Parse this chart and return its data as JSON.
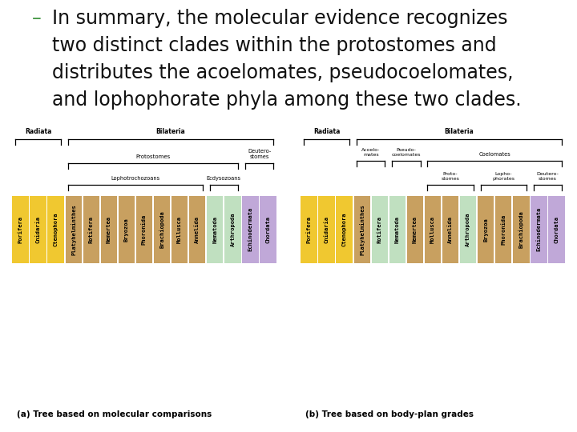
{
  "title_lines": [
    {
      "dash": true,
      "text": "In summary, the molecular evidence recognizes"
    },
    {
      "dash": false,
      "text": "two distinct clades within the protostomes and"
    },
    {
      "dash": false,
      "text": "distributes the acoelomates, pseudocoelomates,"
    },
    {
      "dash": false,
      "text": "and lophophorate phyla among these two clades."
    }
  ],
  "title_color": "#111111",
  "dash_color": "#4a9a4a",
  "bg_color": "#ffffff",
  "tree_bg": "#6ec5b5",
  "caption_a": "(a) Tree based on molecular comparisons",
  "caption_b": "(b) Tree based on body-plan grades",
  "tree_a": {
    "taxa": [
      "Porifera",
      "Cnidaria",
      "Ctenophora",
      "Platyhelminthes",
      "Rotifera",
      "Nemertea",
      "Bryozoa",
      "Phoronida",
      "Brachiopoda",
      "Mollusca",
      "Annelida",
      "Nematoda",
      "Arthropoda",
      "Echinodermata",
      "Chordata"
    ],
    "colors": [
      "#f0c830",
      "#f0c830",
      "#f0c830",
      "#c8a060",
      "#c8a060",
      "#c8a060",
      "#c8a060",
      "#c8a060",
      "#c8a060",
      "#c8a060",
      "#c8a060",
      "#c0e0c0",
      "#c0e0c0",
      "#c0a8d8",
      "#c0a8d8"
    ]
  },
  "tree_b": {
    "taxa": [
      "Porifera",
      "Cnidaria",
      "Ctenophora",
      "Platyhelminthes",
      "Rotifera",
      "Nematoda",
      "Nemertea",
      "Mollusca",
      "Annelida",
      "Arthropoda",
      "Bryozoa",
      "Phoronida",
      "Brachiopoda",
      "Echinodermata",
      "Chordata"
    ],
    "colors": [
      "#f0c830",
      "#f0c830",
      "#f0c830",
      "#c8a060",
      "#c0e0c0",
      "#c0e0c0",
      "#c8a060",
      "#c8a060",
      "#c8a060",
      "#c0e0c0",
      "#c8a060",
      "#c8a060",
      "#c8a060",
      "#c0a8d8",
      "#c0a8d8"
    ]
  }
}
